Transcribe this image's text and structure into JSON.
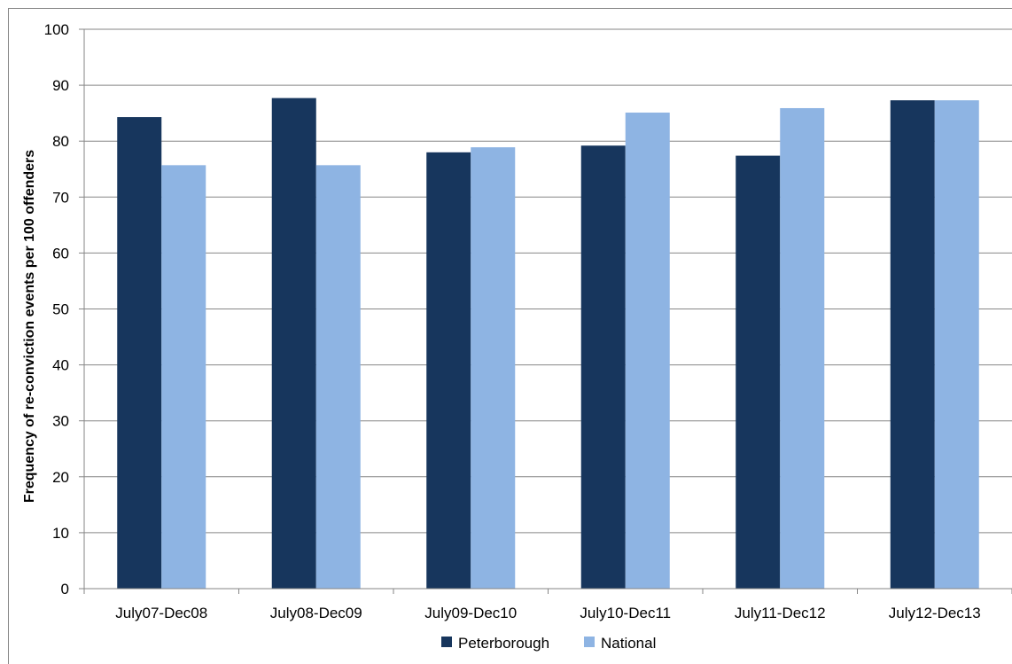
{
  "chart_data": {
    "type": "bar",
    "categories": [
      "July07-Dec08",
      "July08-Dec09",
      "July09-Dec10",
      "July10-Dec11",
      "July11-Dec12",
      "July12-Dec13"
    ],
    "series": [
      {
        "name": "Peterborough",
        "values": [
          84.3,
          87.7,
          78.0,
          79.2,
          77.4,
          87.3
        ],
        "color": "#17365d"
      },
      {
        "name": "National",
        "values": [
          75.7,
          75.7,
          78.9,
          85.1,
          85.9,
          87.3
        ],
        "color": "#8eb4e3"
      }
    ],
    "title": "",
    "xlabel": "",
    "ylabel": "Frequency of re-conviction events per 100 offenders",
    "ylim": [
      0,
      100
    ],
    "yticks": [
      0,
      10,
      20,
      30,
      40,
      50,
      60,
      70,
      80,
      90,
      100
    ],
    "grid": true,
    "legend_position": "bottom"
  }
}
